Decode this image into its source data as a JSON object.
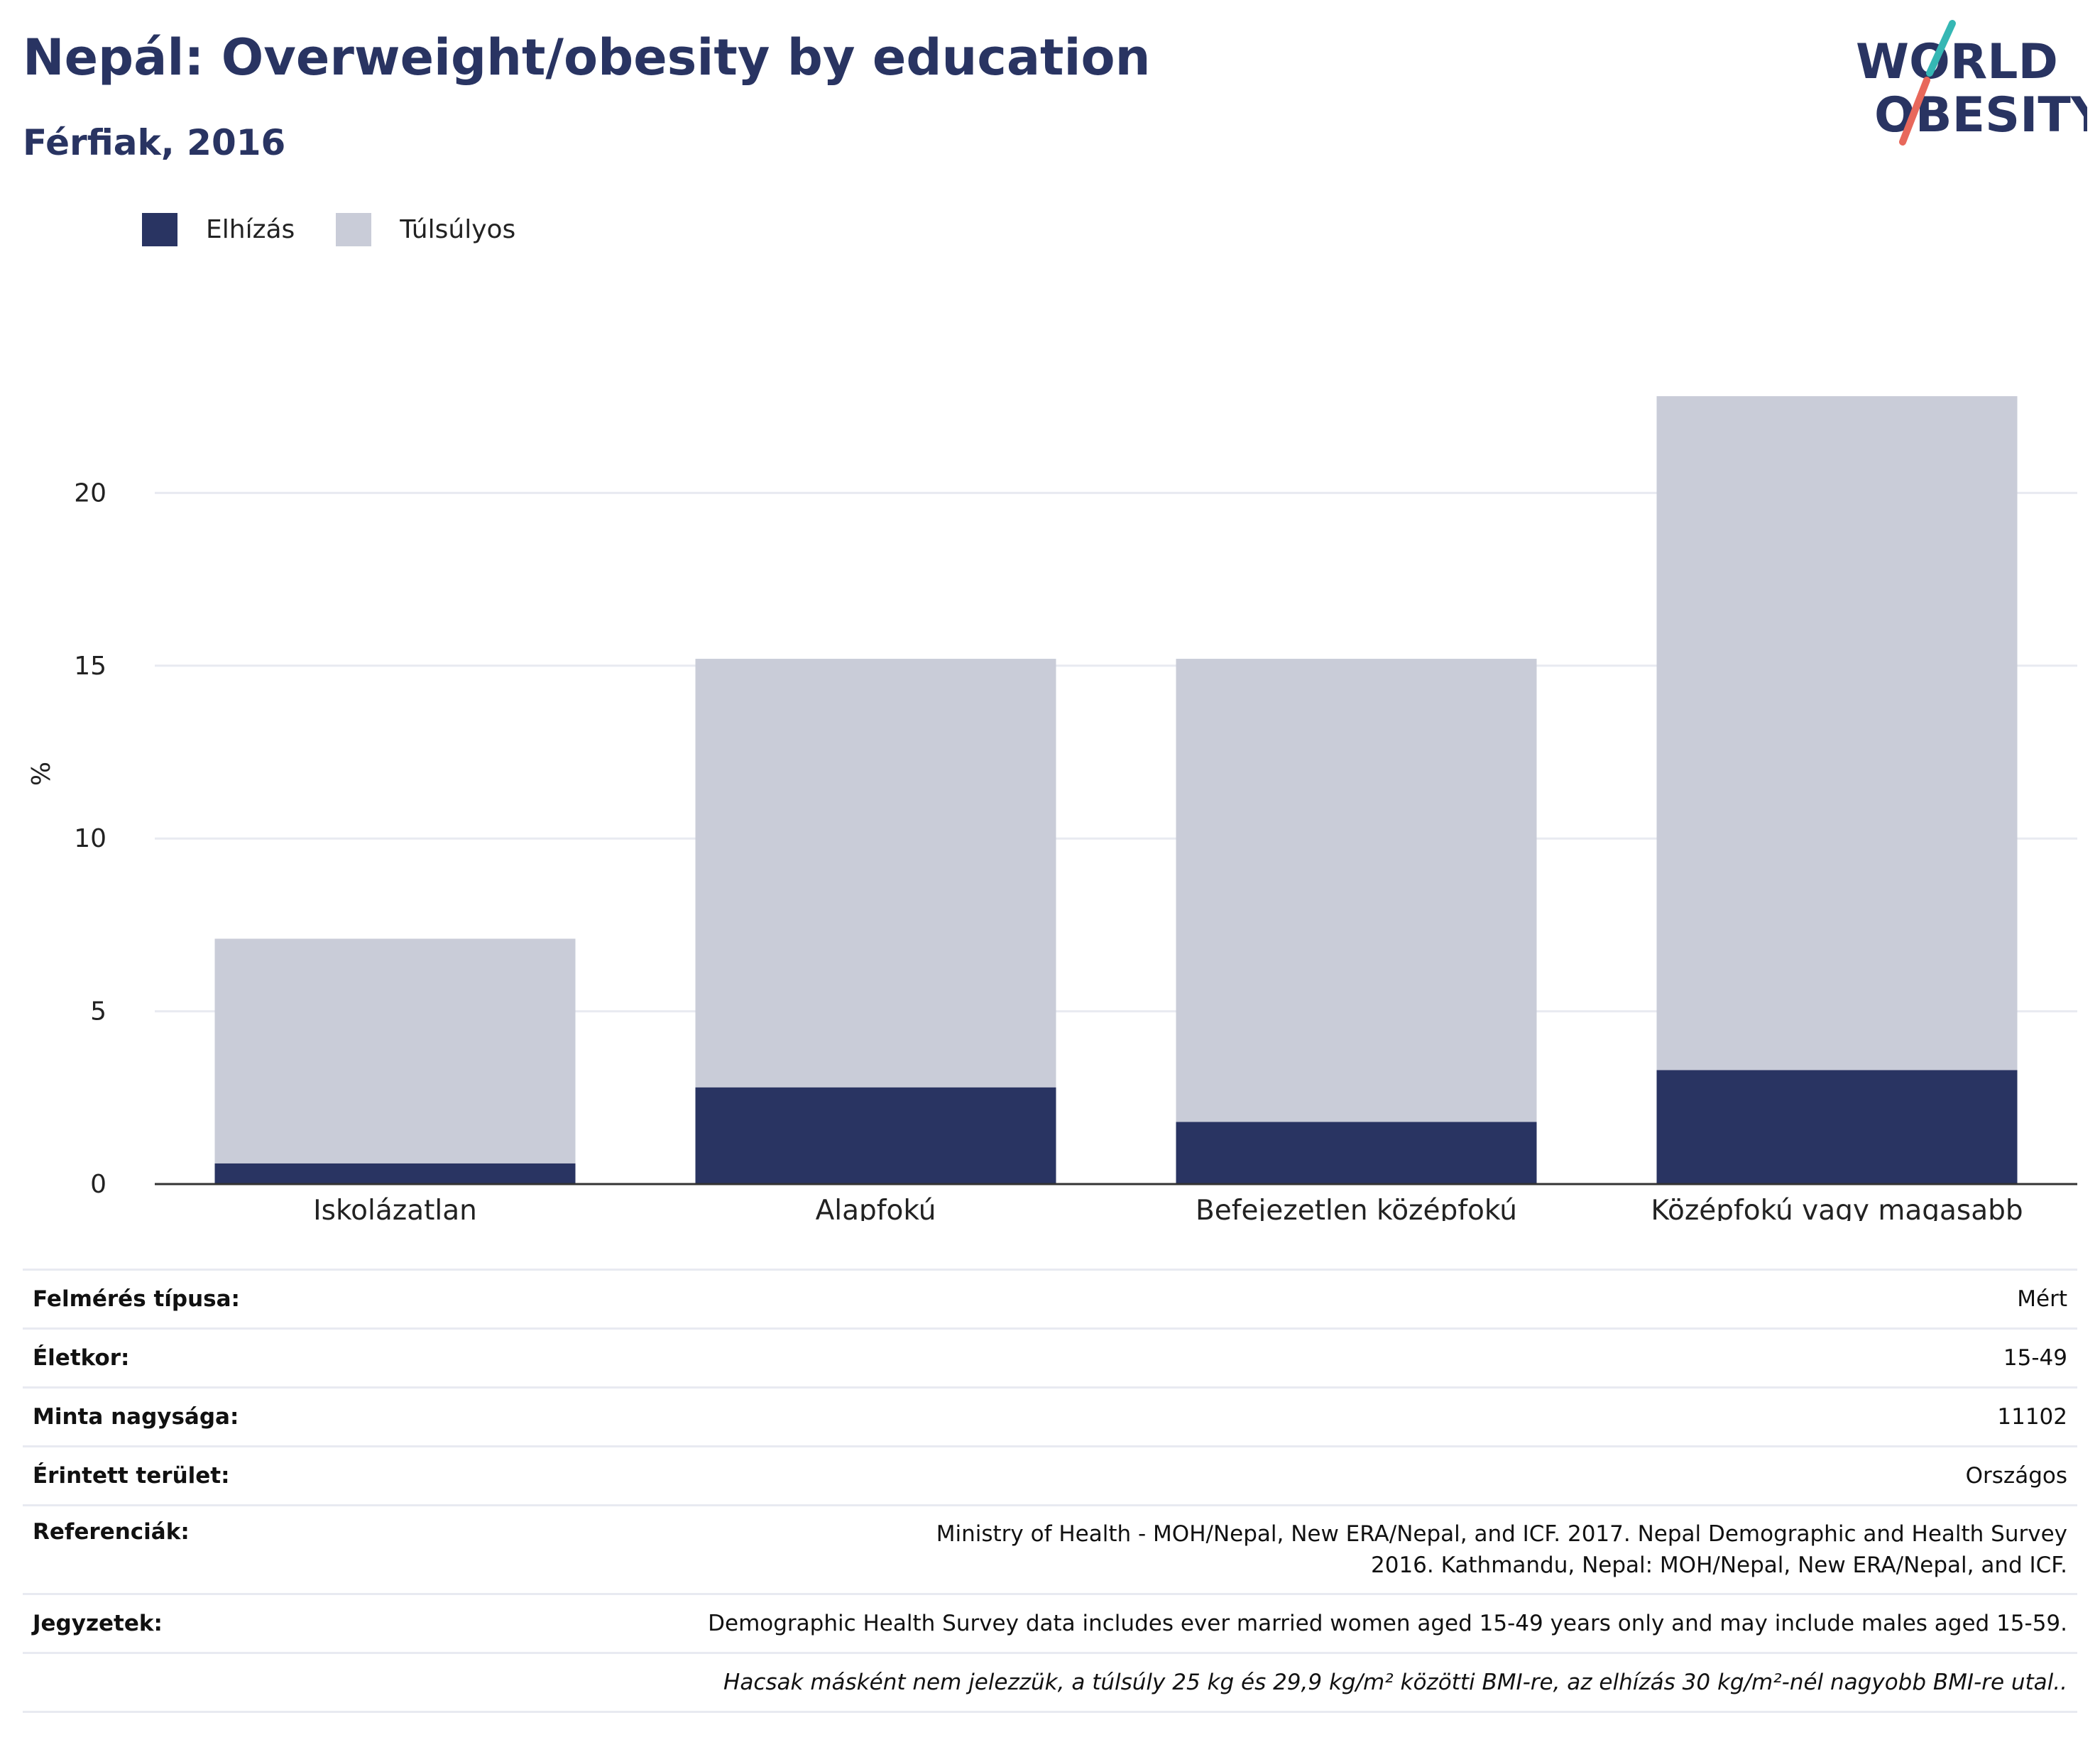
{
  "title": "Nepál: Overweight/obesity by education",
  "subtitle": "Férfiak, 2016",
  "logo": {
    "line1": "WORLD",
    "line2": "OBESITY",
    "colors": {
      "navy": "#293462",
      "teal": "#35b7b4",
      "coral": "#e8685b"
    }
  },
  "legend": [
    {
      "label": "Elhízás",
      "color": "#293462"
    },
    {
      "label": "Túlsúlyos",
      "color": "#c9ccd8"
    }
  ],
  "chart_data": {
    "type": "bar",
    "stacked": true,
    "categories": [
      "Iskolázatlan",
      "Alapfokú",
      "Befejezetlen középfokú",
      "Középfokú vagy magasabb"
    ],
    "series": [
      {
        "name": "Elhízás",
        "color": "#293462",
        "values": [
          0.6,
          2.8,
          1.8,
          3.3
        ]
      },
      {
        "name": "Túlsúlyos",
        "color": "#c9ccd8",
        "values": [
          6.5,
          12.4,
          13.4,
          19.5
        ]
      }
    ],
    "ylabel": "%",
    "ylim": [
      0,
      25
    ],
    "yticks": [
      0,
      5,
      10,
      15,
      20
    ],
    "grid": true,
    "legend_position": "top-left"
  },
  "info": {
    "rows": [
      {
        "key": "Felmérés típusa:",
        "value": "Mért"
      },
      {
        "key": "Életkor:",
        "value": "15-49"
      },
      {
        "key": "Minta nagysága:",
        "value": "11102"
      },
      {
        "key": "Érintett terület:",
        "value": "Országos"
      },
      {
        "key": "Referenciák:",
        "value": "Ministry of Health - MOH/Nepal, New ERA/Nepal, and ICF. 2017. Nepal Demographic and Health Survey 2016. Kathmandu, Nepal: MOH/Nepal, New ERA/Nepal, and ICF."
      },
      {
        "key": "Jegyzetek:",
        "value": "Demographic Health Survey data includes ever married women aged 15-49 years only and may include males aged 15-59."
      }
    ],
    "footnote": "Hacsak másként nem jelezzük, a túlsúly 25 kg és 29,9 kg/m² közötti BMI-re, az elhízás 30 kg/m²-nél nagyobb BMI-re utal.."
  }
}
